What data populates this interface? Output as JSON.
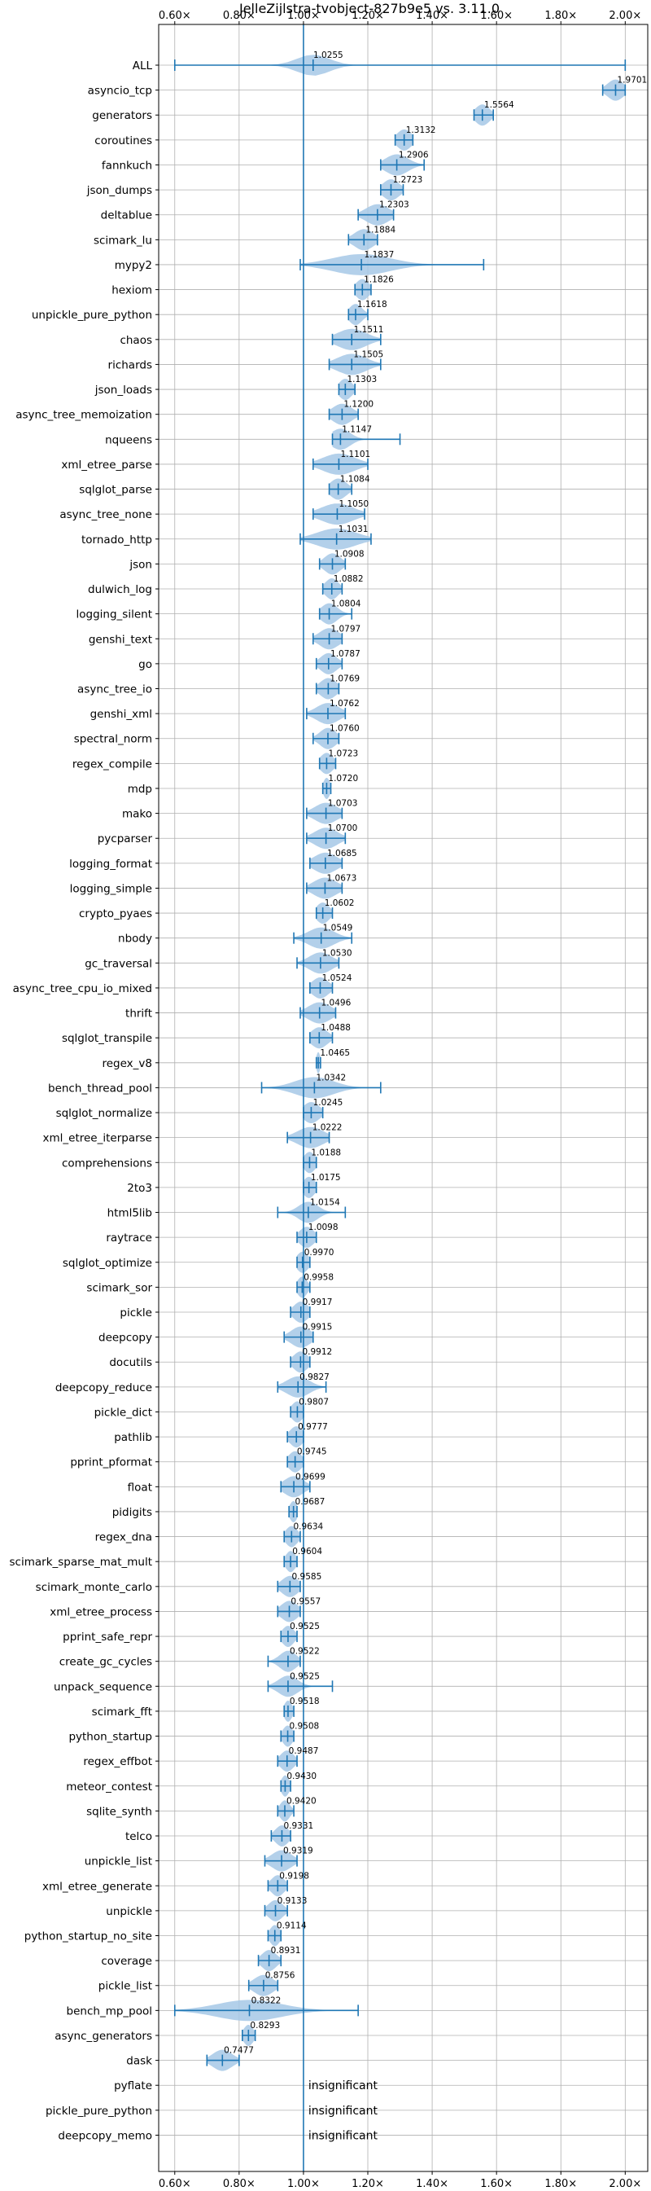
{
  "chart_data": {
    "type": "violin",
    "title": "JelleZijlstra-tvobject-827b9e5 vs. 3.11.0",
    "xlim": [
      0.55,
      2.07
    ],
    "x_ticks": [
      0.6,
      0.8,
      1.0,
      1.2,
      1.4,
      1.6,
      1.8,
      2.0
    ],
    "x_tick_labels": [
      "0.60×",
      "0.80×",
      "1.00×",
      "1.20×",
      "1.40×",
      "1.60×",
      "1.80×",
      "2.00×"
    ],
    "x_tick_position": "top-and-bottom",
    "reference_line": 1.0,
    "grid": true,
    "color": "#1f77b4",
    "fill_color": "#a6c8e6",
    "insignificant_text": "insignificant",
    "benchmarks": [
      {
        "name": "ALL",
        "value": "1.0255",
        "mean": 1.0255,
        "min": 0.6,
        "max": 2.0,
        "median": 1.03,
        "spread": 0.05
      },
      {
        "name": "asyncio_tcp",
        "value": "1.9701",
        "mean": 1.9701,
        "min": 1.93,
        "max": 2.0,
        "median": 1.97,
        "spread": 0.025
      },
      {
        "name": "generators",
        "value": "1.5564",
        "mean": 1.5564,
        "min": 1.53,
        "max": 1.59,
        "median": 1.556,
        "spread": 0.022
      },
      {
        "name": "coroutines",
        "value": "1.3132",
        "mean": 1.3132,
        "min": 1.285,
        "max": 1.34,
        "median": 1.313,
        "spread": 0.022
      },
      {
        "name": "fannkuch",
        "value": "1.2906",
        "mean": 1.2906,
        "min": 1.24,
        "max": 1.375,
        "median": 1.29,
        "spread": 0.035
      },
      {
        "name": "json_dumps",
        "value": "1.2723",
        "mean": 1.2723,
        "min": 1.24,
        "max": 1.31,
        "median": 1.272,
        "spread": 0.025
      },
      {
        "name": "deltablue",
        "value": "1.2303",
        "mean": 1.2303,
        "min": 1.17,
        "max": 1.28,
        "median": 1.23,
        "spread": 0.035
      },
      {
        "name": "scimark_lu",
        "value": "1.1884",
        "mean": 1.1884,
        "min": 1.14,
        "max": 1.23,
        "median": 1.188,
        "spread": 0.03
      },
      {
        "name": "mypy2",
        "value": "1.1837",
        "mean": 1.1837,
        "min": 0.99,
        "max": 1.56,
        "median": 1.18,
        "spread": 0.09
      },
      {
        "name": "hexiom",
        "value": "1.1826",
        "mean": 1.1826,
        "min": 1.16,
        "max": 1.21,
        "median": 1.183,
        "spread": 0.02
      },
      {
        "name": "unpickle_pure_python",
        "value": "1.1618",
        "mean": 1.1618,
        "min": 1.14,
        "max": 1.2,
        "median": 1.162,
        "spread": 0.02
      },
      {
        "name": "chaos",
        "value": "1.1511",
        "mean": 1.1511,
        "min": 1.09,
        "max": 1.24,
        "median": 1.15,
        "spread": 0.045
      },
      {
        "name": "richards",
        "value": "1.1505",
        "mean": 1.1505,
        "min": 1.08,
        "max": 1.24,
        "median": 1.15,
        "spread": 0.045
      },
      {
        "name": "json_loads",
        "value": "1.1303",
        "mean": 1.1303,
        "min": 1.11,
        "max": 1.16,
        "median": 1.13,
        "spread": 0.02
      },
      {
        "name": "async_tree_memoization",
        "value": "1.1200",
        "mean": 1.12,
        "min": 1.08,
        "max": 1.17,
        "median": 1.12,
        "spread": 0.03
      },
      {
        "name": "nqueens",
        "value": "1.1147",
        "mean": 1.1147,
        "min": 1.09,
        "max": 1.3,
        "median": 1.115,
        "spread": 0.03
      },
      {
        "name": "xml_etree_parse",
        "value": "1.1101",
        "mean": 1.1101,
        "min": 1.03,
        "max": 1.2,
        "median": 1.11,
        "spread": 0.05
      },
      {
        "name": "sqlglot_parse",
        "value": "1.1084",
        "mean": 1.1084,
        "min": 1.08,
        "max": 1.15,
        "median": 1.108,
        "spread": 0.025
      },
      {
        "name": "async_tree_none",
        "value": "1.1050",
        "mean": 1.105,
        "min": 1.03,
        "max": 1.19,
        "median": 1.105,
        "spread": 0.05
      },
      {
        "name": "tornado_http",
        "value": "1.1031",
        "mean": 1.1031,
        "min": 0.99,
        "max": 1.21,
        "median": 1.103,
        "spread": 0.06
      },
      {
        "name": "json",
        "value": "1.0908",
        "mean": 1.0908,
        "min": 1.05,
        "max": 1.13,
        "median": 1.09,
        "spread": 0.025
      },
      {
        "name": "dulwich_log",
        "value": "1.0882",
        "mean": 1.0882,
        "min": 1.06,
        "max": 1.12,
        "median": 1.088,
        "spread": 0.02
      },
      {
        "name": "logging_silent",
        "value": "1.0804",
        "mean": 1.0804,
        "min": 1.05,
        "max": 1.15,
        "median": 1.08,
        "spread": 0.025
      },
      {
        "name": "genshi_text",
        "value": "1.0797",
        "mean": 1.0797,
        "min": 1.03,
        "max": 1.12,
        "median": 1.08,
        "spread": 0.03
      },
      {
        "name": "go",
        "value": "1.0787",
        "mean": 1.0787,
        "min": 1.04,
        "max": 1.12,
        "median": 1.078,
        "spread": 0.025
      },
      {
        "name": "async_tree_io",
        "value": "1.0769",
        "mean": 1.0769,
        "min": 1.04,
        "max": 1.11,
        "median": 1.077,
        "spread": 0.025
      },
      {
        "name": "genshi_xml",
        "value": "1.0762",
        "mean": 1.0762,
        "min": 1.01,
        "max": 1.13,
        "median": 1.076,
        "spread": 0.035
      },
      {
        "name": "spectral_norm",
        "value": "1.0760",
        "mean": 1.076,
        "min": 1.03,
        "max": 1.11,
        "median": 1.076,
        "spread": 0.025
      },
      {
        "name": "regex_compile",
        "value": "1.0723",
        "mean": 1.0723,
        "min": 1.05,
        "max": 1.1,
        "median": 1.072,
        "spread": 0.02
      },
      {
        "name": "mdp",
        "value": "1.0720",
        "mean": 1.072,
        "min": 1.06,
        "max": 1.085,
        "median": 1.072,
        "spread": 0.01
      },
      {
        "name": "mako",
        "value": "1.0703",
        "mean": 1.0703,
        "min": 1.01,
        "max": 1.12,
        "median": 1.07,
        "spread": 0.035
      },
      {
        "name": "pycparser",
        "value": "1.0700",
        "mean": 1.07,
        "min": 1.01,
        "max": 1.13,
        "median": 1.07,
        "spread": 0.035
      },
      {
        "name": "logging_format",
        "value": "1.0685",
        "mean": 1.0685,
        "min": 1.02,
        "max": 1.12,
        "median": 1.068,
        "spread": 0.035
      },
      {
        "name": "logging_simple",
        "value": "1.0673",
        "mean": 1.0673,
        "min": 1.01,
        "max": 1.12,
        "median": 1.067,
        "spread": 0.035
      },
      {
        "name": "crypto_pyaes",
        "value": "1.0602",
        "mean": 1.0602,
        "min": 1.04,
        "max": 1.09,
        "median": 1.06,
        "spread": 0.02
      },
      {
        "name": "nbody",
        "value": "1.0549",
        "mean": 1.0549,
        "min": 0.97,
        "max": 1.15,
        "median": 1.055,
        "spread": 0.04
      },
      {
        "name": "gc_traversal",
        "value": "1.0530",
        "mean": 1.053,
        "min": 0.98,
        "max": 1.11,
        "median": 1.053,
        "spread": 0.035
      },
      {
        "name": "async_tree_cpu_io_mixed",
        "value": "1.0524",
        "mean": 1.0524,
        "min": 1.02,
        "max": 1.09,
        "median": 1.052,
        "spread": 0.025
      },
      {
        "name": "thrift",
        "value": "1.0496",
        "mean": 1.0496,
        "min": 0.99,
        "max": 1.1,
        "median": 1.05,
        "spread": 0.035
      },
      {
        "name": "sqlglot_transpile",
        "value": "1.0488",
        "mean": 1.0488,
        "min": 1.02,
        "max": 1.09,
        "median": 1.049,
        "spread": 0.025
      },
      {
        "name": "regex_v8",
        "value": "1.0465",
        "mean": 1.0465,
        "min": 1.04,
        "max": 1.053,
        "median": 1.046,
        "spread": 0.006
      },
      {
        "name": "bench_thread_pool",
        "value": "1.0342",
        "mean": 1.0342,
        "min": 0.87,
        "max": 1.24,
        "median": 1.034,
        "spread": 0.06
      },
      {
        "name": "sqlglot_normalize",
        "value": "1.0245",
        "mean": 1.0245,
        "min": 1.0,
        "max": 1.06,
        "median": 1.024,
        "spread": 0.025
      },
      {
        "name": "xml_etree_iterparse",
        "value": "1.0222",
        "mean": 1.0222,
        "min": 0.95,
        "max": 1.08,
        "median": 1.022,
        "spread": 0.04
      },
      {
        "name": "comprehensions",
        "value": "1.0188",
        "mean": 1.0188,
        "min": 1.0,
        "max": 1.04,
        "median": 1.019,
        "spread": 0.018
      },
      {
        "name": "2to3",
        "value": "1.0175",
        "mean": 1.0175,
        "min": 1.0,
        "max": 1.04,
        "median": 1.017,
        "spread": 0.018
      },
      {
        "name": "html5lib",
        "value": "1.0154",
        "mean": 1.0154,
        "min": 0.92,
        "max": 1.13,
        "median": 1.015,
        "spread": 0.03
      },
      {
        "name": "raytrace",
        "value": "1.0098",
        "mean": 1.0098,
        "min": 0.98,
        "max": 1.04,
        "median": 1.01,
        "spread": 0.022
      },
      {
        "name": "sqlglot_optimize",
        "value": "0.9970",
        "mean": 0.997,
        "min": 0.98,
        "max": 1.02,
        "median": 0.997,
        "spread": 0.018
      },
      {
        "name": "scimark_sor",
        "value": "0.9958",
        "mean": 0.9958,
        "min": 0.98,
        "max": 1.02,
        "median": 0.996,
        "spread": 0.015
      },
      {
        "name": "pickle",
        "value": "0.9917",
        "mean": 0.9917,
        "min": 0.96,
        "max": 1.02,
        "median": 0.992,
        "spread": 0.022
      },
      {
        "name": "deepcopy",
        "value": "0.9915",
        "mean": 0.9915,
        "min": 0.94,
        "max": 1.03,
        "median": 0.992,
        "spread": 0.03
      },
      {
        "name": "docutils",
        "value": "0.9912",
        "mean": 0.9912,
        "min": 0.96,
        "max": 1.02,
        "median": 0.991,
        "spread": 0.022
      },
      {
        "name": "deepcopy_reduce",
        "value": "0.9827",
        "mean": 0.9827,
        "min": 0.92,
        "max": 1.07,
        "median": 0.983,
        "spread": 0.035
      },
      {
        "name": "pickle_dict",
        "value": "0.9807",
        "mean": 0.9807,
        "min": 0.96,
        "max": 1.0,
        "median": 0.981,
        "spread": 0.018
      },
      {
        "name": "pathlib",
        "value": "0.9777",
        "mean": 0.9777,
        "min": 0.95,
        "max": 1.0,
        "median": 0.978,
        "spread": 0.02
      },
      {
        "name": "pprint_pformat",
        "value": "0.9745",
        "mean": 0.9745,
        "min": 0.95,
        "max": 1.0,
        "median": 0.974,
        "spread": 0.02
      },
      {
        "name": "float",
        "value": "0.9699",
        "mean": 0.9699,
        "min": 0.93,
        "max": 1.02,
        "median": 0.97,
        "spread": 0.03
      },
      {
        "name": "pidigits",
        "value": "0.9687",
        "mean": 0.9687,
        "min": 0.955,
        "max": 0.98,
        "median": 0.969,
        "spread": 0.012
      },
      {
        "name": "regex_dna",
        "value": "0.9634",
        "mean": 0.9634,
        "min": 0.94,
        "max": 0.99,
        "median": 0.963,
        "spread": 0.018
      },
      {
        "name": "scimark_sparse_mat_mult",
        "value": "0.9604",
        "mean": 0.9604,
        "min": 0.94,
        "max": 0.98,
        "median": 0.96,
        "spread": 0.015
      },
      {
        "name": "scimark_monte_carlo",
        "value": "0.9585",
        "mean": 0.9585,
        "min": 0.92,
        "max": 0.99,
        "median": 0.958,
        "spread": 0.025
      },
      {
        "name": "xml_etree_process",
        "value": "0.9557",
        "mean": 0.9557,
        "min": 0.92,
        "max": 0.99,
        "median": 0.956,
        "spread": 0.025
      },
      {
        "name": "pprint_safe_repr",
        "value": "0.9525",
        "mean": 0.9525,
        "min": 0.93,
        "max": 0.98,
        "median": 0.952,
        "spread": 0.018
      },
      {
        "name": "create_gc_cycles",
        "value": "0.9522",
        "mean": 0.9522,
        "min": 0.89,
        "max": 0.99,
        "median": 0.952,
        "spread": 0.025
      },
      {
        "name": "unpack_sequence",
        "value": "0.9525",
        "mean": 0.9525,
        "min": 0.89,
        "max": 1.09,
        "median": 0.952,
        "spread": 0.03
      },
      {
        "name": "scimark_fft",
        "value": "0.9518",
        "mean": 0.9518,
        "min": 0.94,
        "max": 0.97,
        "median": 0.952,
        "spread": 0.012
      },
      {
        "name": "python_startup",
        "value": "0.9508",
        "mean": 0.9508,
        "min": 0.93,
        "max": 0.97,
        "median": 0.951,
        "spread": 0.015
      },
      {
        "name": "regex_effbot",
        "value": "0.9487",
        "mean": 0.9487,
        "min": 0.92,
        "max": 0.98,
        "median": 0.949,
        "spread": 0.02
      },
      {
        "name": "meteor_contest",
        "value": "0.9430",
        "mean": 0.943,
        "min": 0.93,
        "max": 0.96,
        "median": 0.943,
        "spread": 0.012
      },
      {
        "name": "sqlite_synth",
        "value": "0.9420",
        "mean": 0.942,
        "min": 0.92,
        "max": 0.97,
        "median": 0.942,
        "spread": 0.015
      },
      {
        "name": "telco",
        "value": "0.9331",
        "mean": 0.9331,
        "min": 0.9,
        "max": 0.96,
        "median": 0.933,
        "spread": 0.02
      },
      {
        "name": "unpickle_list",
        "value": "0.9319",
        "mean": 0.9319,
        "min": 0.88,
        "max": 0.98,
        "median": 0.932,
        "spread": 0.03
      },
      {
        "name": "xml_etree_generate",
        "value": "0.9198",
        "mean": 0.9198,
        "min": 0.89,
        "max": 0.95,
        "median": 0.92,
        "spread": 0.02
      },
      {
        "name": "unpickle",
        "value": "0.9133",
        "mean": 0.9133,
        "min": 0.88,
        "max": 0.95,
        "median": 0.913,
        "spread": 0.022
      },
      {
        "name": "python_startup_no_site",
        "value": "0.9114",
        "mean": 0.9114,
        "min": 0.89,
        "max": 0.93,
        "median": 0.911,
        "spread": 0.015
      },
      {
        "name": "coverage",
        "value": "0.8931",
        "mean": 0.8931,
        "min": 0.86,
        "max": 0.93,
        "median": 0.893,
        "spread": 0.022
      },
      {
        "name": "pickle_list",
        "value": "0.8756",
        "mean": 0.8756,
        "min": 0.83,
        "max": 0.92,
        "median": 0.876,
        "spread": 0.03
      },
      {
        "name": "bench_mp_pool",
        "value": "0.8322",
        "mean": 0.8322,
        "min": 0.6,
        "max": 1.17,
        "median": 0.832,
        "spread": 0.1
      },
      {
        "name": "async_generators",
        "value": "0.8293",
        "mean": 0.8293,
        "min": 0.81,
        "max": 0.85,
        "median": 0.829,
        "spread": 0.015
      },
      {
        "name": "dask",
        "value": "0.7477",
        "mean": 0.7477,
        "min": 0.7,
        "max": 0.8,
        "median": 0.748,
        "spread": 0.03
      },
      {
        "name": "pyflate",
        "value": "insignificant",
        "mean": null
      },
      {
        "name": "pickle_pure_python",
        "value": "insignificant",
        "mean": null
      },
      {
        "name": "deepcopy_memo",
        "value": "insignificant",
        "mean": null
      }
    ]
  }
}
